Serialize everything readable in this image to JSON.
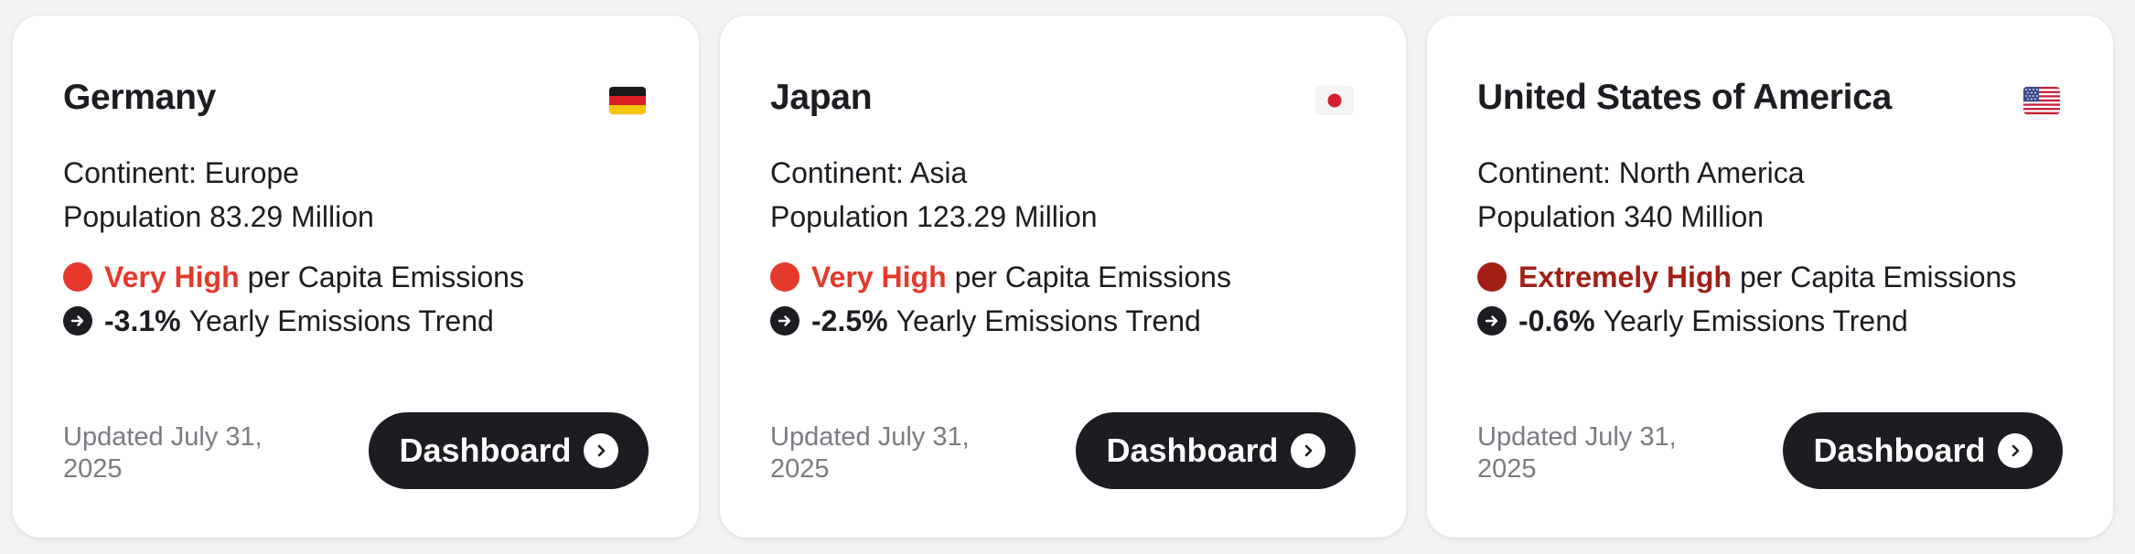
{
  "cards": [
    {
      "country": "Germany",
      "flag_icon": "germany-flag-icon",
      "continent": "Continent: Europe",
      "population": "Population 83.29 Million",
      "emission_level": "Very High",
      "emission_level_color": "#e5392b",
      "per_capita_label": "per Capita Emissions",
      "trend_value": "-3.1%",
      "trend_label": "Yearly Emissions Trend",
      "updated": "Updated July 31, 2025",
      "button_label": "Dashboard"
    },
    {
      "country": "Japan",
      "flag_icon": "japan-flag-icon",
      "continent": "Continent: Asia",
      "population": "Population 123.29 Million",
      "emission_level": "Very High",
      "emission_level_color": "#e5392b",
      "per_capita_label": "per Capita Emissions",
      "trend_value": "-2.5%",
      "trend_label": "Yearly Emissions Trend",
      "updated": "Updated July 31, 2025",
      "button_label": "Dashboard"
    },
    {
      "country": "United States of America",
      "flag_icon": "usa-flag-icon",
      "continent": "Continent: North America",
      "population": "Population 340 Million",
      "emission_level": "Extremely High",
      "emission_level_color": "#a31f16",
      "per_capita_label": "per Capita Emissions",
      "trend_value": "-0.6%",
      "trend_label": "Yearly Emissions Trend",
      "updated": "Updated July 31, 2025",
      "button_label": "Dashboard"
    }
  ],
  "colors": {
    "button_bg": "#1c1c22",
    "muted_text": "#7b7b84"
  }
}
